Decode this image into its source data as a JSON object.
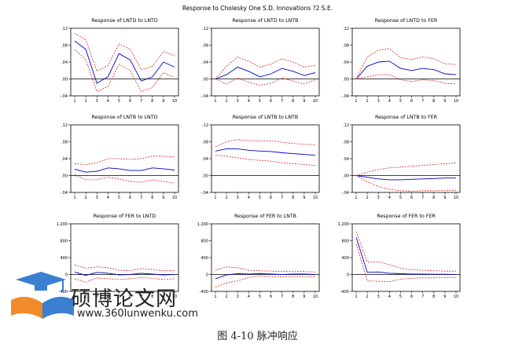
{
  "figure": {
    "title": "Response to Cholesky One S.D. Innovations ?2 S.E.",
    "caption": "图 4-10  脉冲响应",
    "colors": {
      "response": "#0000cc",
      "band": "#e02020",
      "axis": "#000000"
    }
  },
  "watermark": {
    "logo_text": "硕博论文网",
    "url": "www.360lunwenku.com",
    "colors": {
      "cap": "#3a7fd0",
      "book": "#f08a2a"
    }
  },
  "chart_data": [
    {
      "type": "line",
      "title": "Response of LNTD to LNTD",
      "x": [
        1,
        2,
        3,
        4,
        5,
        6,
        7,
        8,
        9,
        10
      ],
      "ylim": [
        -0.04,
        0.12
      ],
      "yticks": [
        ".12",
        ".08",
        ".04",
        ".00",
        "-.04"
      ],
      "ytick_values": [
        0.12,
        0.08,
        0.04,
        0.0,
        -0.04
      ],
      "series": [
        {
          "values": [
            0.09,
            0.07,
            -0.01,
            0.005,
            0.06,
            0.045,
            -0.005,
            0.005,
            0.04,
            0.028
          ]
        },
        {
          "values": [
            0.108,
            0.093,
            0.018,
            0.032,
            0.083,
            0.07,
            0.022,
            0.03,
            0.065,
            0.055
          ]
        },
        {
          "values": [
            0.07,
            0.045,
            -0.03,
            -0.018,
            0.035,
            0.02,
            -0.03,
            -0.02,
            0.015,
            0.003
          ]
        }
      ]
    },
    {
      "type": "line",
      "title": "Response of LNTD to LNTB",
      "x": [
        1,
        2,
        3,
        4,
        5,
        6,
        7,
        8,
        9,
        10
      ],
      "ylim": [
        -0.04,
        0.12
      ],
      "yticks": [
        ".12",
        ".08",
        ".04",
        ".00",
        "-.04"
      ],
      "ytick_values": [
        0.12,
        0.08,
        0.04,
        0.0,
        -0.04
      ],
      "series": [
        {
          "values": [
            0.0,
            0.01,
            0.028,
            0.018,
            0.005,
            0.012,
            0.025,
            0.018,
            0.008,
            0.015
          ]
        },
        {
          "values": [
            0.0,
            0.03,
            0.052,
            0.042,
            0.028,
            0.035,
            0.048,
            0.04,
            0.028,
            0.032
          ]
        },
        {
          "values": [
            0.0,
            -0.012,
            0.002,
            -0.008,
            -0.015,
            -0.01,
            0.002,
            -0.005,
            -0.012,
            -0.002
          ]
        }
      ]
    },
    {
      "type": "line",
      "title": "Response of LNTD to FER",
      "x": [
        1,
        2,
        3,
        4,
        5,
        6,
        7,
        8,
        9,
        10
      ],
      "ylim": [
        -0.04,
        0.12
      ],
      "yticks": [
        ".12",
        ".08",
        ".04",
        ".00",
        "-.04"
      ],
      "ytick_values": [
        0.12,
        0.08,
        0.04,
        0.0,
        -0.04
      ],
      "series": [
        {
          "values": [
            0.0,
            0.03,
            0.04,
            0.042,
            0.025,
            0.02,
            0.025,
            0.022,
            0.012,
            0.01
          ]
        },
        {
          "values": [
            0.0,
            0.052,
            0.068,
            0.072,
            0.05,
            0.046,
            0.052,
            0.048,
            0.036,
            0.034
          ]
        },
        {
          "values": [
            0.0,
            0.005,
            0.01,
            0.01,
            -0.002,
            -0.006,
            -0.002,
            -0.004,
            -0.01,
            -0.012
          ]
        }
      ]
    },
    {
      "type": "line",
      "title": "Response of LNTB to LNTD",
      "x": [
        1,
        2,
        3,
        4,
        5,
        6,
        7,
        8,
        9,
        10
      ],
      "ylim": [
        -0.04,
        0.12
      ],
      "yticks": [
        ".12",
        ".08",
        ".04",
        ".00",
        "-.04"
      ],
      "ytick_values": [
        0.12,
        0.08,
        0.04,
        0.0,
        -0.04
      ],
      "series": [
        {
          "values": [
            0.015,
            0.008,
            0.01,
            0.018,
            0.016,
            0.012,
            0.012,
            0.018,
            0.016,
            0.013
          ]
        },
        {
          "values": [
            0.028,
            0.026,
            0.03,
            0.04,
            0.04,
            0.038,
            0.04,
            0.046,
            0.046,
            0.044
          ]
        },
        {
          "values": [
            0.002,
            -0.01,
            -0.01,
            -0.004,
            -0.008,
            -0.014,
            -0.016,
            -0.01,
            -0.014,
            -0.018
          ]
        }
      ]
    },
    {
      "type": "line",
      "title": "Response of LNTB to LNTB",
      "x": [
        1,
        2,
        3,
        4,
        5,
        6,
        7,
        8,
        9,
        10
      ],
      "ylim": [
        -0.04,
        0.12
      ],
      "yticks": [
        ".12",
        ".08",
        ".04",
        ".00",
        "-.04"
      ],
      "ytick_values": [
        0.12,
        0.08,
        0.04,
        0.0,
        -0.04
      ],
      "series": [
        {
          "values": [
            0.058,
            0.063,
            0.063,
            0.06,
            0.058,
            0.057,
            0.054,
            0.052,
            0.05,
            0.048
          ]
        },
        {
          "values": [
            0.068,
            0.08,
            0.085,
            0.083,
            0.082,
            0.082,
            0.079,
            0.076,
            0.074,
            0.073
          ]
        },
        {
          "values": [
            0.048,
            0.046,
            0.042,
            0.038,
            0.036,
            0.034,
            0.03,
            0.028,
            0.026,
            0.024
          ]
        }
      ]
    },
    {
      "type": "line",
      "title": "Response of LNTB to FER",
      "x": [
        1,
        2,
        3,
        4,
        5,
        6,
        7,
        8,
        9,
        10
      ],
      "ylim": [
        -0.04,
        0.12
      ],
      "yticks": [
        ".12",
        ".08",
        ".04",
        ".00",
        "-.04"
      ],
      "ytick_values": [
        0.12,
        0.08,
        0.04,
        0.0,
        -0.04
      ],
      "series": [
        {
          "values": [
            0.0,
            -0.004,
            -0.008,
            -0.01,
            -0.01,
            -0.009,
            -0.008,
            -0.007,
            -0.006,
            -0.006
          ]
        },
        {
          "values": [
            0.0,
            0.008,
            0.014,
            0.018,
            0.02,
            0.022,
            0.024,
            0.026,
            0.028,
            0.03
          ]
        },
        {
          "values": [
            0.0,
            -0.015,
            -0.026,
            -0.033,
            -0.036,
            -0.037,
            -0.036,
            -0.036,
            -0.035,
            -0.035
          ]
        }
      ]
    },
    {
      "type": "line",
      "title": "Response of FER to LNTD",
      "x": [
        1,
        2,
        3,
        4,
        5,
        6,
        7,
        8,
        9,
        10
      ],
      "ylim": [
        -400,
        1200
      ],
      "yticks": [
        "1,200",
        "800",
        "400",
        "0",
        "-400"
      ],
      "ytick_values": [
        1200,
        800,
        400,
        0,
        -400
      ],
      "series": [
        {
          "values": [
            60,
            -20,
            50,
            30,
            -10,
            0,
            30,
            10,
            -10,
            0
          ]
        },
        {
          "values": [
            230,
            150,
            180,
            160,
            100,
            90,
            140,
            120,
            90,
            90
          ]
        },
        {
          "values": [
            -100,
            -180,
            -80,
            -100,
            -120,
            -100,
            -70,
            -90,
            -120,
            -100
          ]
        }
      ]
    },
    {
      "type": "line",
      "title": "Response of FER to LNTB",
      "x": [
        1,
        2,
        3,
        4,
        5,
        6,
        7,
        8,
        9,
        10
      ],
      "ylim": [
        -400,
        1200
      ],
      "yticks": [
        "1,200",
        "800",
        "400",
        "0",
        "-400"
      ],
      "ytick_values": [
        1200,
        800,
        400,
        0,
        -400
      ],
      "series": [
        {
          "values": [
            -100,
            -10,
            20,
            10,
            20,
            10,
            0,
            10,
            10,
            0
          ]
        },
        {
          "values": [
            100,
            180,
            160,
            100,
            90,
            80,
            70,
            80,
            70,
            60
          ]
        },
        {
          "values": [
            -300,
            -200,
            -150,
            -70,
            -40,
            -50,
            -60,
            -50,
            -50,
            -55
          ]
        }
      ]
    },
    {
      "type": "line",
      "title": "Response of FER to FER",
      "x": [
        1,
        2,
        3,
        4,
        5,
        6,
        7,
        8,
        9,
        10
      ],
      "ylim": [
        -400,
        1200
      ],
      "yticks": [
        "1,200",
        "800",
        "400",
        "0",
        "-400"
      ],
      "ytick_values": [
        1200,
        800,
        400,
        0,
        -400
      ],
      "series": [
        {
          "values": [
            880,
            50,
            60,
            30,
            20,
            10,
            10,
            5,
            5,
            0
          ]
        },
        {
          "values": [
            1020,
            300,
            300,
            230,
            150,
            110,
            100,
            90,
            80,
            80
          ]
        },
        {
          "values": [
            720,
            -150,
            -160,
            -170,
            -110,
            -90,
            -80,
            -80,
            -70,
            -70
          ]
        }
      ]
    }
  ]
}
